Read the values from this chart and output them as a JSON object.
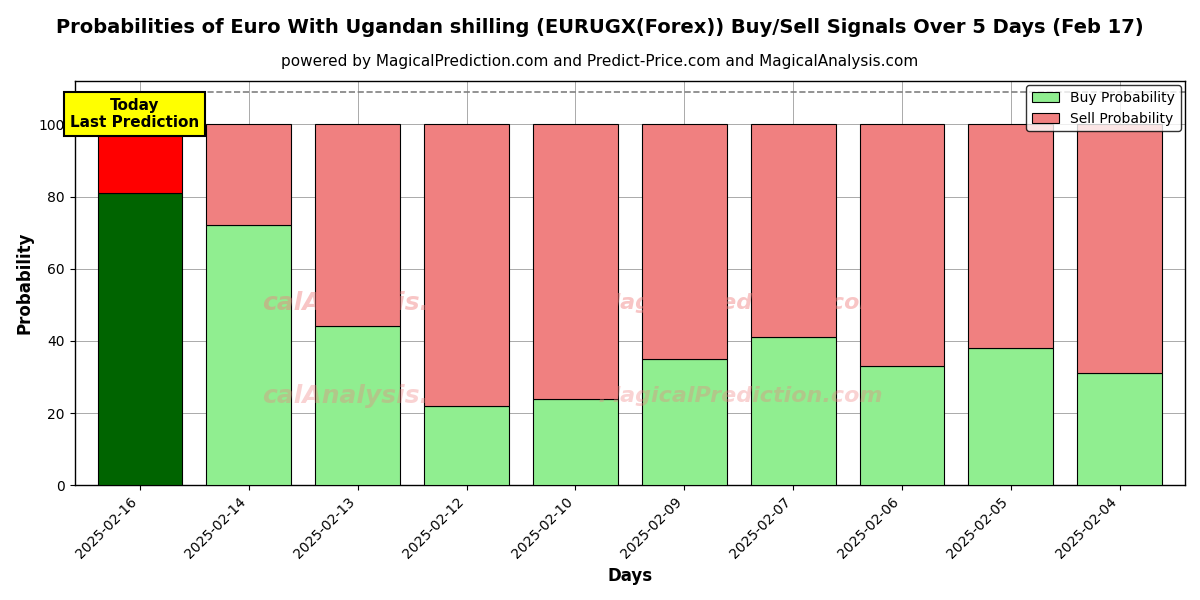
{
  "title": "Probabilities of Euro With Ugandan shilling (EURUGX(Forex)) Buy/Sell Signals Over 5 Days (Feb 17)",
  "subtitle": "powered by MagicalPrediction.com and Predict-Price.com and MagicalAnalysis.com",
  "xlabel": "Days",
  "ylabel": "Probability",
  "dates": [
    "2025-02-16",
    "2025-02-14",
    "2025-02-13",
    "2025-02-12",
    "2025-02-10",
    "2025-02-09",
    "2025-02-07",
    "2025-02-06",
    "2025-02-05",
    "2025-02-04"
  ],
  "buy_values": [
    81,
    72,
    44,
    22,
    24,
    35,
    41,
    33,
    38,
    31
  ],
  "sell_values": [
    19,
    28,
    56,
    78,
    76,
    65,
    59,
    67,
    62,
    69
  ],
  "today_bar_buy_color": "#006400",
  "today_bar_sell_color": "#ff0000",
  "other_bar_buy_color": "#90EE90",
  "other_bar_sell_color": "#F08080",
  "bar_edge_color": "#000000",
  "legend_buy_color": "#90EE90",
  "legend_sell_color": "#F08080",
  "watermark_texts": [
    "calAnalysis.com",
    "MagicalPrediction.com"
  ],
  "watermark_texts2": [
    "MagicalAnalysis.com",
    "MagicalPrediction.com"
  ],
  "today_label": "Today\nLast Prediction",
  "today_label_bg": "#ffff00",
  "ylim": [
    0,
    112
  ],
  "dashed_line_y": 109,
  "yticks": [
    0,
    20,
    40,
    60,
    80,
    100
  ],
  "grid_color": "#aaaaaa",
  "background_color": "#ffffff",
  "title_fontsize": 14,
  "subtitle_fontsize": 11,
  "bar_width": 0.78
}
